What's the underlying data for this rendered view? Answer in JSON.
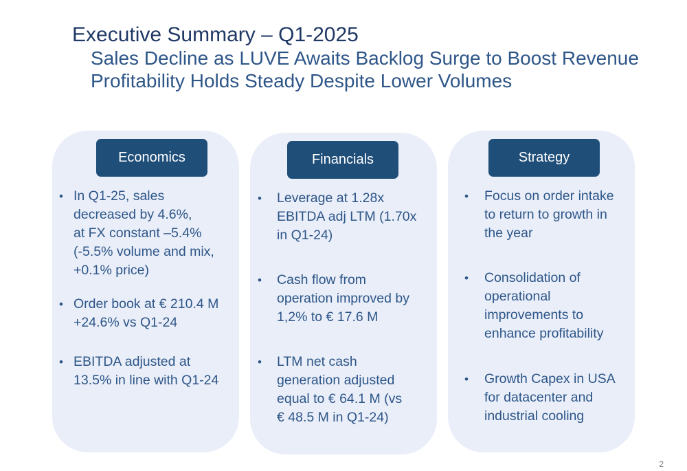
{
  "slide": {
    "title": "Executive Summary – Q1-2025",
    "subtitle_lines": [
      "Sales Decline as LUVE Awaits Backlog Surge to Boost Revenue",
      "Profitability Holds Steady Despite Lower Volumes"
    ],
    "page_number": "2",
    "colors": {
      "title": "#1f3864",
      "text": "#2e5688",
      "pill": "#1f4e79",
      "card": "#e9eef9"
    }
  },
  "columns": [
    {
      "heading": "Economics",
      "bullets": [
        {
          "lines": [
            "In Q1-25, sales",
            "decreased by 4.6%,",
            "at FX constant –5.4%",
            "(-5.5%  volume and mix,",
            "+0.1% price)"
          ]
        },
        {
          "lines": [
            "Order book at  € 210.4 M",
            "+24.6% vs Q1-24"
          ]
        },
        {
          "lines": [
            "EBITDA adjusted at",
            "13.5% in line with Q1-24"
          ]
        }
      ]
    },
    {
      "heading": "Financials",
      "bullets": [
        {
          "lines": [
            "Leverage at 1.28x",
            "EBITDA adj LTM (1.70x",
            "in Q1-24)"
          ]
        },
        {
          "lines": [
            "Cash flow from",
            "operation  improved by",
            "1,2% to € 17.6 M"
          ]
        },
        {
          "lines": [
            "LTM net cash",
            "generation adjusted",
            "equal to € 64.1 M (vs",
            "€ 48.5 M in Q1-24)"
          ]
        }
      ]
    },
    {
      "heading": "Strategy",
      "bullets": [
        {
          "lines": [
            "Focus on order intake",
            "to return to growth in",
            "the year"
          ]
        },
        {
          "lines": [
            "Consolidation of",
            "operational",
            "improvements to",
            "enhance profitability"
          ]
        },
        {
          "lines": [
            "Growth Capex in USA",
            "for datacenter  and",
            "industrial cooling"
          ]
        }
      ]
    }
  ]
}
